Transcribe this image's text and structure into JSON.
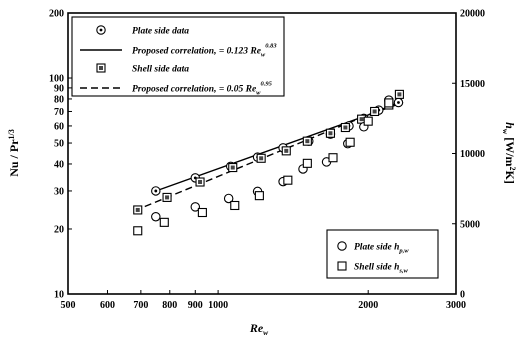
{
  "chart_data": {
    "type": "scatter",
    "title": "",
    "x": {
      "label": "Re",
      "label_subscript": "w",
      "scale": "log",
      "range": [
        500,
        3000
      ],
      "ticks": [
        500,
        600,
        700,
        800,
        900,
        1000,
        2000,
        3000
      ],
      "tick_labels": [
        "500",
        "600",
        "700",
        "800",
        "900",
        "1000",
        "2000",
        "3000"
      ]
    },
    "y_left": {
      "label": "Nu / Pr",
      "label_superscript": "1/3",
      "scale": "log",
      "range": [
        10,
        200
      ],
      "ticks": [
        10,
        20,
        30,
        40,
        50,
        60,
        70,
        80,
        90,
        100,
        200
      ],
      "tick_labels": [
        "10",
        "20",
        "30",
        "40",
        "50",
        "60",
        "70",
        "80",
        "90",
        "100",
        "200"
      ]
    },
    "y_right": {
      "label": "h",
      "label_subscript": "w",
      "label_units": "[W/m",
      "label_units_sup": "2",
      "label_units_end": "K]",
      "scale": "linear",
      "range": [
        0,
        20000
      ],
      "ticks": [
        0,
        5000,
        10000,
        15000,
        20000
      ],
      "tick_labels": [
        "0",
        "5000",
        "10000",
        "15000",
        "20000"
      ]
    },
    "legend_top": [
      {
        "marker": "circle-dot",
        "text": "Plate side data",
        "sub": "",
        "sup": ""
      },
      {
        "marker": "solid-line",
        "text": "Proposed correlation, = 0.123 Re",
        "sub": "w",
        "sup": "0.83"
      },
      {
        "marker": "square-dot",
        "text": "Shell side data",
        "sub": "",
        "sup": ""
      },
      {
        "marker": "dashed-line",
        "text": "Proposed correlation, = 0.05 Re",
        "sub": "w",
        "sup": "0.95"
      }
    ],
    "legend_bottom": [
      {
        "marker": "circle",
        "text": "Plate side h",
        "sub": "p,w"
      },
      {
        "marker": "square",
        "text": "Shell side h",
        "sub": "s,w"
      }
    ],
    "series": [
      {
        "name": "Plate side data",
        "axis": "left",
        "marker": "circle-dot",
        "x": [
          750,
          900,
          1060,
          1200,
          1350,
          1520,
          1680,
          1830,
          1960,
          2100,
          2300
        ],
        "y": [
          30,
          34.5,
          39,
          43,
          47.5,
          51,
          55,
          60,
          65,
          71,
          77
        ]
      },
      {
        "name": "Shell side data",
        "axis": "left",
        "marker": "square-dot",
        "x": [
          690,
          790,
          920,
          1070,
          1220,
          1370,
          1510,
          1680,
          1800,
          1940,
          2060,
          2200,
          2310
        ],
        "y": [
          24.5,
          28,
          33,
          38.5,
          42.5,
          46,
          51,
          55.5,
          59,
          64.5,
          70,
          75,
          84
        ]
      },
      {
        "name": "Proposed correlation, = 0.123 Re_w^0.83",
        "axis": "left",
        "line": "solid",
        "x": [
          750,
          2350
        ],
        "y": [
          30,
          77
        ]
      },
      {
        "name": "Proposed correlation, = 0.05 Re_w^0.95",
        "axis": "left",
        "line": "dashed",
        "x": [
          680,
          2330
        ],
        "y": [
          24.3,
          78
        ]
      },
      {
        "name": "Plate side h_p,w",
        "axis": "right",
        "marker": "circle",
        "x": [
          750,
          900,
          1050,
          1200,
          1350,
          1480,
          1650,
          1820,
          1960,
          2200
        ],
        "y": [
          5500,
          6200,
          6800,
          7300,
          8000,
          8900,
          9400,
          10700,
          11900,
          13800
        ]
      },
      {
        "name": "Shell side h_s,w",
        "axis": "right",
        "marker": "square",
        "x": [
          690,
          780,
          930,
          1080,
          1210,
          1380,
          1510,
          1700,
          1840,
          2000,
          2200
        ],
        "y": [
          4500,
          5100,
          5800,
          6300,
          7000,
          8100,
          9300,
          9700,
          10800,
          12300,
          13600
        ]
      }
    ],
    "legend_placement": [
      "top-left",
      "bottom-right"
    ],
    "grid": false
  }
}
